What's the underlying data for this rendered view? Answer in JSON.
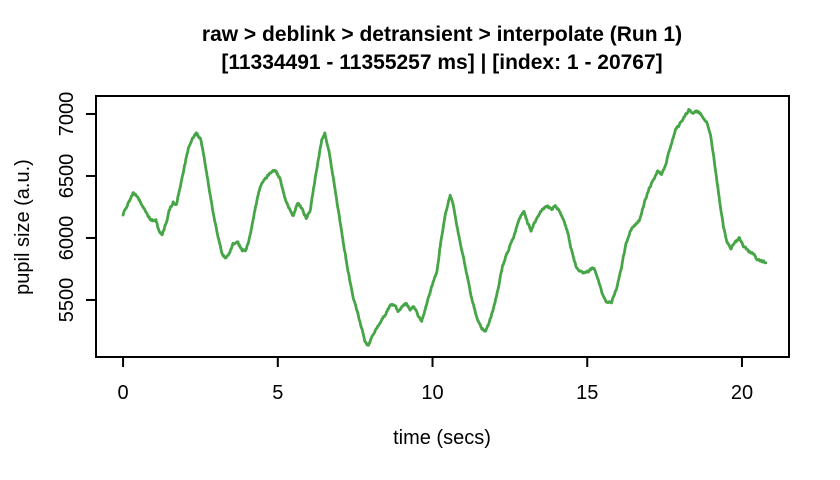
{
  "window": {
    "background_color": "#ffffff"
  },
  "chart_data": {
    "type": "line",
    "title": "raw > deblink > detransient > interpolate (Run 1)",
    "subtitle": "[11334491 - 11355257 ms] | [index: 1 - 20767]",
    "xlabel": "time (secs)",
    "ylabel": "pupil size (a.u.)",
    "xlim": [
      -0.875,
      21.52
    ],
    "ylim": [
      5040,
      7145
    ],
    "xticks": [
      0,
      5,
      10,
      15,
      20
    ],
    "yticks": [
      5500,
      6000,
      6500,
      7000
    ],
    "grid": false,
    "legend": "none",
    "line_color": "#46A546",
    "axis_color": "#000000",
    "line_width": 2.8,
    "noise_amplitude": 9,
    "series": [
      {
        "name": "pupil-size-trace",
        "points": [
          [
            0.0,
            6190
          ],
          [
            0.1,
            6240
          ],
          [
            0.22,
            6310
          ],
          [
            0.33,
            6365
          ],
          [
            0.45,
            6340
          ],
          [
            0.58,
            6280
          ],
          [
            0.72,
            6215
          ],
          [
            0.86,
            6160
          ],
          [
            0.97,
            6135
          ],
          [
            1.06,
            6150
          ],
          [
            1.16,
            6060
          ],
          [
            1.26,
            6030
          ],
          [
            1.38,
            6110
          ],
          [
            1.5,
            6230
          ],
          [
            1.62,
            6290
          ],
          [
            1.72,
            6270
          ],
          [
            1.84,
            6400
          ],
          [
            1.97,
            6560
          ],
          [
            2.1,
            6710
          ],
          [
            2.24,
            6810
          ],
          [
            2.38,
            6845
          ],
          [
            2.5,
            6800
          ],
          [
            2.62,
            6650
          ],
          [
            2.76,
            6430
          ],
          [
            2.9,
            6220
          ],
          [
            3.04,
            6040
          ],
          [
            3.18,
            5890
          ],
          [
            3.3,
            5830
          ],
          [
            3.42,
            5870
          ],
          [
            3.55,
            5950
          ],
          [
            3.7,
            5965
          ],
          [
            3.84,
            5905
          ],
          [
            3.96,
            5890
          ],
          [
            4.08,
            5990
          ],
          [
            4.2,
            6140
          ],
          [
            4.32,
            6300
          ],
          [
            4.44,
            6420
          ],
          [
            4.56,
            6460
          ],
          [
            4.7,
            6510
          ],
          [
            4.85,
            6545
          ],
          [
            4.95,
            6530
          ],
          [
            5.08,
            6470
          ],
          [
            5.22,
            6330
          ],
          [
            5.35,
            6250
          ],
          [
            5.5,
            6175
          ],
          [
            5.63,
            6280
          ],
          [
            5.77,
            6240
          ],
          [
            5.92,
            6155
          ],
          [
            6.05,
            6225
          ],
          [
            6.17,
            6420
          ],
          [
            6.3,
            6620
          ],
          [
            6.42,
            6790
          ],
          [
            6.52,
            6850
          ],
          [
            6.65,
            6700
          ],
          [
            6.8,
            6470
          ],
          [
            6.95,
            6230
          ],
          [
            7.1,
            5990
          ],
          [
            7.25,
            5760
          ],
          [
            7.4,
            5560
          ],
          [
            7.55,
            5420
          ],
          [
            7.7,
            5280
          ],
          [
            7.82,
            5165
          ],
          [
            7.92,
            5135
          ],
          [
            8.05,
            5200
          ],
          [
            8.18,
            5270
          ],
          [
            8.32,
            5320
          ],
          [
            8.48,
            5390
          ],
          [
            8.62,
            5450
          ],
          [
            8.76,
            5465
          ],
          [
            8.88,
            5410
          ],
          [
            9.02,
            5445
          ],
          [
            9.15,
            5470
          ],
          [
            9.28,
            5420
          ],
          [
            9.4,
            5450
          ],
          [
            9.55,
            5360
          ],
          [
            9.65,
            5335
          ],
          [
            9.77,
            5430
          ],
          [
            9.9,
            5545
          ],
          [
            10.02,
            5640
          ],
          [
            10.14,
            5730
          ],
          [
            10.28,
            5990
          ],
          [
            10.42,
            6190
          ],
          [
            10.57,
            6350
          ],
          [
            10.7,
            6230
          ],
          [
            10.84,
            6030
          ],
          [
            10.98,
            5860
          ],
          [
            11.12,
            5690
          ],
          [
            11.28,
            5500
          ],
          [
            11.44,
            5350
          ],
          [
            11.6,
            5270
          ],
          [
            11.72,
            5245
          ],
          [
            11.85,
            5330
          ],
          [
            11.98,
            5440
          ],
          [
            12.12,
            5590
          ],
          [
            12.26,
            5770
          ],
          [
            12.4,
            5870
          ],
          [
            12.52,
            5950
          ],
          [
            12.62,
            6010
          ],
          [
            12.72,
            6090
          ],
          [
            12.84,
            6170
          ],
          [
            12.95,
            6215
          ],
          [
            13.08,
            6120
          ],
          [
            13.18,
            6060
          ],
          [
            13.3,
            6120
          ],
          [
            13.44,
            6190
          ],
          [
            13.58,
            6240
          ],
          [
            13.72,
            6255
          ],
          [
            13.85,
            6230
          ],
          [
            13.95,
            6255
          ],
          [
            14.08,
            6230
          ],
          [
            14.22,
            6160
          ],
          [
            14.35,
            6060
          ],
          [
            14.5,
            5890
          ],
          [
            14.65,
            5760
          ],
          [
            14.8,
            5725
          ],
          [
            14.95,
            5720
          ],
          [
            15.1,
            5745
          ],
          [
            15.22,
            5755
          ],
          [
            15.35,
            5660
          ],
          [
            15.5,
            5540
          ],
          [
            15.65,
            5475
          ],
          [
            15.8,
            5490
          ],
          [
            15.95,
            5590
          ],
          [
            16.1,
            5760
          ],
          [
            16.25,
            5950
          ],
          [
            16.4,
            6060
          ],
          [
            16.55,
            6110
          ],
          [
            16.7,
            6150
          ],
          [
            16.85,
            6290
          ],
          [
            17.0,
            6400
          ],
          [
            17.15,
            6470
          ],
          [
            17.28,
            6540
          ],
          [
            17.4,
            6510
          ],
          [
            17.55,
            6610
          ],
          [
            17.7,
            6740
          ],
          [
            17.85,
            6870
          ],
          [
            17.98,
            6915
          ],
          [
            18.12,
            6970
          ],
          [
            18.28,
            7035
          ],
          [
            18.42,
            7000
          ],
          [
            18.55,
            7025
          ],
          [
            18.7,
            6990
          ],
          [
            18.85,
            6940
          ],
          [
            18.98,
            6840
          ],
          [
            19.12,
            6590
          ],
          [
            19.26,
            6330
          ],
          [
            19.4,
            6090
          ],
          [
            19.52,
            5965
          ],
          [
            19.64,
            5915
          ],
          [
            19.78,
            5970
          ],
          [
            19.92,
            6000
          ],
          [
            20.05,
            5935
          ],
          [
            20.2,
            5895
          ],
          [
            20.35,
            5880
          ],
          [
            20.48,
            5825
          ],
          [
            20.62,
            5815
          ],
          [
            20.77,
            5800
          ]
        ]
      }
    ]
  }
}
